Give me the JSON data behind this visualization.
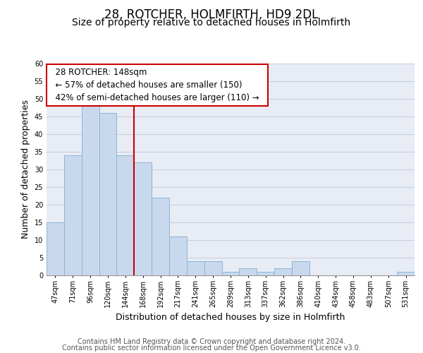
{
  "title": "28, ROTCHER, HOLMFIRTH, HD9 2DL",
  "subtitle": "Size of property relative to detached houses in Holmfirth",
  "xlabel": "Distribution of detached houses by size in Holmfirth",
  "ylabel": "Number of detached properties",
  "bin_labels": [
    "47sqm",
    "71sqm",
    "96sqm",
    "120sqm",
    "144sqm",
    "168sqm",
    "192sqm",
    "217sqm",
    "241sqm",
    "265sqm",
    "289sqm",
    "313sqm",
    "337sqm",
    "362sqm",
    "386sqm",
    "410sqm",
    "434sqm",
    "458sqm",
    "483sqm",
    "507sqm",
    "531sqm"
  ],
  "bar_heights": [
    15,
    34,
    49,
    46,
    34,
    32,
    22,
    11,
    4,
    4,
    1,
    2,
    1,
    2,
    4,
    0,
    0,
    0,
    0,
    0,
    1
  ],
  "bar_color": "#c9d9ed",
  "bar_edge_color": "#8ab4d4",
  "vline_color": "#cc0000",
  "ylim": [
    0,
    60
  ],
  "yticks": [
    0,
    5,
    10,
    15,
    20,
    25,
    30,
    35,
    40,
    45,
    50,
    55,
    60
  ],
  "annotation_title": "28 ROTCHER: 148sqm",
  "annotation_line1": "← 57% of detached houses are smaller (150)",
  "annotation_line2": "42% of semi-detached houses are larger (110) →",
  "annotation_box_color": "#ffffff",
  "annotation_box_edge": "#cc0000",
  "footer1": "Contains HM Land Registry data © Crown copyright and database right 2024.",
  "footer2": "Contains public sector information licensed under the Open Government Licence v3.0.",
  "title_fontsize": 12,
  "subtitle_fontsize": 10,
  "xlabel_fontsize": 9,
  "ylabel_fontsize": 9,
  "footer_fontsize": 7,
  "annotation_fontsize": 8.5,
  "tick_fontsize": 7,
  "bg_color": "#e8ecf5"
}
